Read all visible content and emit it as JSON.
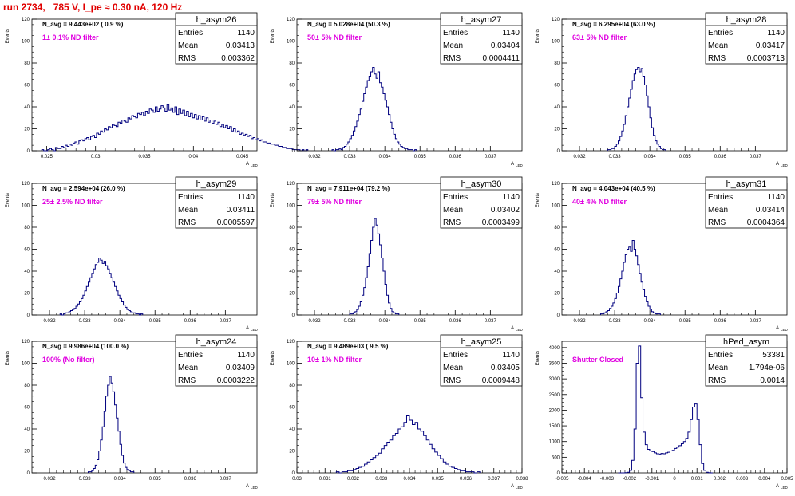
{
  "title": "run 2734,   785 V, I_pe ≈ 0.30 nA, 120 Hz",
  "colors": {
    "title": "#e00000",
    "histogram": "#00007f",
    "annotation": "#e000e0",
    "axis": "#000000"
  },
  "chart_data": [
    {
      "type": "histogram",
      "name": "h_asym26",
      "navg": "N_avg = 9.443e+02 ( 0.9 %)",
      "note": "1± 0.1% ND filter",
      "stats": {
        "entries": "1140",
        "mean": "0.03413",
        "rms": "0.003362"
      },
      "xlim": [
        0.0235,
        0.0465
      ],
      "ylim": [
        0,
        120
      ],
      "xticks": [
        "0.025",
        "0.03",
        "0.035",
        "0.04",
        "0.045"
      ],
      "yticks": [
        "0",
        "20",
        "40",
        "60",
        "80",
        "100",
        "120"
      ],
      "xlabel": "A_LED",
      "ylabel": "Events",
      "bins_start": 0.0245,
      "bin_width": 0.0002,
      "counts": [
        1,
        0,
        0,
        1,
        2,
        1,
        0,
        3,
        2,
        2,
        4,
        3,
        5,
        4,
        6,
        5,
        7,
        8,
        6,
        9,
        10,
        9,
        11,
        12,
        10,
        13,
        14,
        12,
        16,
        15,
        18,
        17,
        20,
        19,
        22,
        21,
        24,
        23,
        22,
        26,
        25,
        28,
        27,
        26,
        30,
        29,
        32,
        31,
        30,
        34,
        33,
        35,
        32,
        36,
        34,
        38,
        37,
        35,
        40,
        36,
        38,
        41,
        39,
        36,
        42,
        37,
        39,
        35,
        40,
        33,
        38,
        34,
        37,
        32,
        36,
        31,
        34,
        30,
        33,
        29,
        32,
        28,
        31,
        27,
        30,
        26,
        28,
        25,
        27,
        24,
        26,
        22,
        24,
        21,
        23,
        20,
        22,
        18,
        20,
        17,
        18,
        15,
        16,
        14,
        15,
        13,
        14,
        11,
        12,
        10,
        11,
        9,
        10,
        8,
        8,
        7,
        7,
        6,
        6,
        5,
        5,
        4,
        4,
        3,
        3,
        2,
        2,
        2,
        1,
        1,
        1,
        1,
        0,
        1,
        0,
        1
      ]
    },
    {
      "type": "histogram",
      "name": "h_asym27",
      "navg": "N_avg = 5.028e+04 (50.3 %)",
      "note": "50± 5% ND filter",
      "stats": {
        "entries": "1140",
        "mean": "0.03404",
        "rms": "0.0004411"
      },
      "xlim": [
        0.0315,
        0.0379
      ],
      "ylim": [
        0,
        120
      ],
      "xticks": [
        "0.032",
        "0.033",
        "0.034",
        "0.035",
        "0.036",
        "0.037"
      ],
      "yticks": [
        "0",
        "20",
        "40",
        "60",
        "80",
        "100",
        "120"
      ],
      "xlabel": "A_LED",
      "ylabel": "Events",
      "bins_start": 0.0325,
      "bin_width": 5e-05,
      "counts": [
        1,
        0,
        1,
        1,
        2,
        1,
        3,
        4,
        6,
        8,
        11,
        14,
        18,
        22,
        27,
        33,
        38,
        45,
        52,
        58,
        64,
        68,
        72,
        76,
        70,
        66,
        72,
        62,
        58,
        52,
        46,
        40,
        33,
        26,
        20,
        15,
        11,
        8,
        6,
        4,
        3,
        2,
        2,
        1,
        1,
        1,
        0,
        1
      ]
    },
    {
      "type": "histogram",
      "name": "h_asym28",
      "navg": "N_avg = 6.295e+04 (63.0 %)",
      "note": "63± 5% ND filter",
      "stats": {
        "entries": "1140",
        "mean": "0.03417",
        "rms": "0.0003713"
      },
      "xlim": [
        0.0315,
        0.0379
      ],
      "ylim": [
        0,
        120
      ],
      "xticks": [
        "0.032",
        "0.033",
        "0.034",
        "0.035",
        "0.036",
        "0.037"
      ],
      "yticks": [
        "0",
        "20",
        "40",
        "60",
        "80",
        "100",
        "120"
      ],
      "xlabel": "A_LED",
      "ylabel": "Events",
      "bins_start": 0.0328,
      "bin_width": 5e-05,
      "counts": [
        1,
        1,
        2,
        2,
        4,
        6,
        9,
        13,
        18,
        24,
        32,
        40,
        48,
        56,
        64,
        70,
        74,
        76,
        72,
        75,
        68,
        60,
        50,
        40,
        30,
        21,
        14,
        9,
        6,
        4,
        2,
        1,
        1
      ]
    },
    {
      "type": "histogram",
      "name": "h_asym29",
      "navg": "N_avg = 2.594e+04 (26.0 %)",
      "note": "25± 2.5% ND filter",
      "stats": {
        "entries": "1140",
        "mean": "0.03411",
        "rms": "0.0005597"
      },
      "xlim": [
        0.0315,
        0.0379
      ],
      "ylim": [
        0,
        120
      ],
      "xticks": [
        "0.032",
        "0.033",
        "0.034",
        "0.035",
        "0.036",
        "0.037"
      ],
      "yticks": [
        "0",
        "20",
        "40",
        "60",
        "80",
        "100",
        "120"
      ],
      "xlabel": "A_LED",
      "ylabel": "Events",
      "bins_start": 0.0323,
      "bin_width": 5e-05,
      "counts": [
        1,
        0,
        1,
        2,
        2,
        3,
        4,
        5,
        6,
        8,
        10,
        12,
        15,
        18,
        22,
        26,
        30,
        34,
        38,
        42,
        46,
        48,
        52,
        50,
        47,
        49,
        45,
        42,
        38,
        34,
        30,
        26,
        22,
        18,
        15,
        12,
        9,
        7,
        5,
        4,
        3,
        2,
        2,
        1,
        1,
        0,
        1
      ]
    },
    {
      "type": "histogram",
      "name": "h_asym30",
      "navg": "N_avg = 7.911e+04 (79.2 %)",
      "note": "79± 5% ND filter",
      "stats": {
        "entries": "1140",
        "mean": "0.03402",
        "rms": "0.0003499"
      },
      "xlim": [
        0.0315,
        0.0379
      ],
      "ylim": [
        0,
        120
      ],
      "xticks": [
        "0.032",
        "0.033",
        "0.034",
        "0.035",
        "0.036",
        "0.037"
      ],
      "yticks": [
        "0",
        "20",
        "40",
        "60",
        "80",
        "100",
        "120"
      ],
      "xlabel": "A_LED",
      "ylabel": "Events",
      "bins_start": 0.033,
      "bin_width": 5e-05,
      "counts": [
        1,
        1,
        2,
        3,
        5,
        8,
        12,
        18,
        25,
        34,
        44,
        56,
        68,
        80,
        88,
        82,
        74,
        64,
        52,
        40,
        28,
        18,
        11,
        6,
        3,
        2,
        1,
        1
      ]
    },
    {
      "type": "histogram",
      "name": "h_asym31",
      "navg": "N_avg = 4.043e+04 (40.5 %)",
      "note": "40± 4% ND filter",
      "stats": {
        "entries": "1140",
        "mean": "0.03414",
        "rms": "0.0004364"
      },
      "xlim": [
        0.0315,
        0.0379
      ],
      "ylim": [
        0,
        120
      ],
      "xticks": [
        "0.032",
        "0.033",
        "0.034",
        "0.035",
        "0.036",
        "0.037"
      ],
      "yticks": [
        "0",
        "20",
        "40",
        "60",
        "80",
        "100",
        "120"
      ],
      "xlabel": "A_LED",
      "ylabel": "Events",
      "bins_start": 0.0326,
      "bin_width": 5e-05,
      "counts": [
        1,
        1,
        2,
        3,
        4,
        6,
        8,
        11,
        15,
        20,
        26,
        33,
        40,
        48,
        55,
        60,
        62,
        58,
        68,
        60,
        54,
        46,
        38,
        30,
        23,
        17,
        12,
        8,
        5,
        3,
        2,
        1,
        1,
        1
      ]
    },
    {
      "type": "histogram",
      "name": "h_asym24",
      "navg": "N_avg = 9.986e+04 (100.0 %)",
      "note": "100% (No filter)",
      "stats": {
        "entries": "1140",
        "mean": "0.03409",
        "rms": "0.0003222"
      },
      "xlim": [
        0.0315,
        0.0379
      ],
      "ylim": [
        0,
        120
      ],
      "xticks": [
        "0.032",
        "0.033",
        "0.034",
        "0.035",
        "0.036",
        "0.037"
      ],
      "yticks": [
        "0",
        "20",
        "40",
        "60",
        "80",
        "100",
        "120"
      ],
      "xlabel": "A_LED",
      "ylabel": "Events",
      "bins_start": 0.0331,
      "bin_width": 5e-05,
      "counts": [
        1,
        1,
        2,
        4,
        7,
        12,
        20,
        30,
        42,
        56,
        70,
        80,
        88,
        82,
        74,
        62,
        50,
        38,
        26,
        16,
        9,
        5,
        3,
        2,
        1,
        1
      ]
    },
    {
      "type": "histogram",
      "name": "h_asym25",
      "navg": "N_avg = 9.489e+03 ( 9.5 %)",
      "note": "10± 1% ND filter",
      "stats": {
        "entries": "1140",
        "mean": "0.03405",
        "rms": "0.0009448"
      },
      "xlim": [
        0.03,
        0.038
      ],
      "ylim": [
        0,
        120
      ],
      "xticks": [
        "0.03",
        "0.031",
        "0.032",
        "0.033",
        "0.034",
        "0.035",
        "0.036",
        "0.037",
        "0.038"
      ],
      "yticks": [
        "0",
        "20",
        "40",
        "60",
        "80",
        "100",
        "120"
      ],
      "xlabel": "A_LED",
      "ylabel": "Events",
      "bins_start": 0.0314,
      "bin_width": 0.0001,
      "counts": [
        1,
        0,
        1,
        1,
        2,
        2,
        3,
        4,
        5,
        6,
        8,
        10,
        12,
        14,
        16,
        18,
        22,
        25,
        28,
        30,
        34,
        36,
        40,
        42,
        46,
        52,
        48,
        44,
        46,
        40,
        38,
        34,
        30,
        26,
        22,
        19,
        16,
        13,
        10,
        8,
        6,
        5,
        4,
        3,
        2,
        2,
        1,
        1,
        1,
        0,
        1
      ]
    },
    {
      "type": "histogram",
      "name": "hPed_asym",
      "navg": "",
      "note": "Shutter Closed",
      "stats": {
        "entries": "53381",
        "mean": "1.794e-06",
        "rms": "0.0014"
      },
      "xlim": [
        -0.005,
        0.005
      ],
      "ylim": [
        0,
        4200
      ],
      "xticks": [
        "-0.005",
        "-0.004",
        "-0.003",
        "-0.002",
        "-0.001",
        "0",
        "0.001",
        "0.002",
        "0.003",
        "0.004",
        "0.005"
      ],
      "yticks": [
        "0",
        "500",
        "1000",
        "1500",
        "2000",
        "2500",
        "3000",
        "3500",
        "4000"
      ],
      "xlabel": "A_LED",
      "ylabel": "Events",
      "bins_start": -0.0025,
      "bin_width": 0.0001,
      "counts": [
        0,
        0,
        0,
        5,
        20,
        80,
        400,
        1400,
        3500,
        4050,
        2400,
        1300,
        900,
        750,
        700,
        680,
        640,
        610,
        600,
        620,
        610,
        640,
        660,
        700,
        720,
        780,
        820,
        870,
        930,
        1000,
        1100,
        1300,
        1700,
        2100,
        2200,
        1700,
        900,
        300,
        80,
        20,
        5,
        0
      ]
    }
  ]
}
